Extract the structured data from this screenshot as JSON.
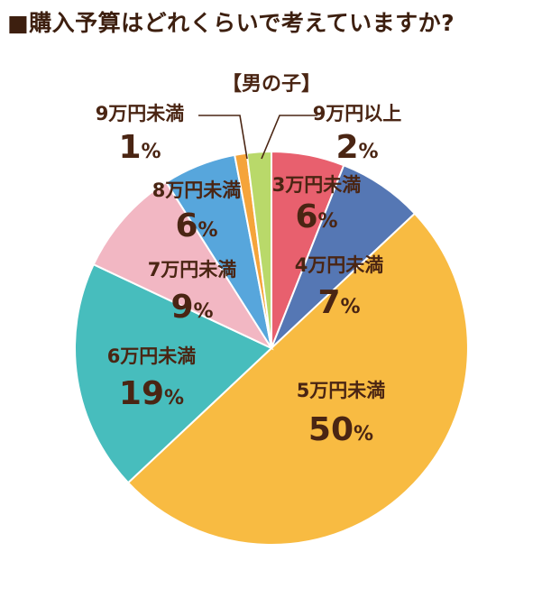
{
  "page": {
    "title": "■購入予算はどれくらいで考えていますか?"
  },
  "chart_data": {
    "type": "pie",
    "title": "■購入予算はどれくらいで考えていますか?",
    "subtitle": "【男の子】",
    "unit": "%",
    "slices": [
      {
        "label": "3万円未満",
        "value": 6,
        "color": "#e8606e"
      },
      {
        "label": "4万円未満",
        "value": 7,
        "color": "#5577b4"
      },
      {
        "label": "5万円未満",
        "value": 50,
        "color": "#f8bb42"
      },
      {
        "label": "6万円未満",
        "value": 19,
        "color": "#47bdbd"
      },
      {
        "label": "7万円未満",
        "value": 9,
        "color": "#f2b7c3"
      },
      {
        "label": "8万円未満",
        "value": 6,
        "color": "#57a6dc"
      },
      {
        "label": "9万円未満",
        "value": 1,
        "color": "#f5a43a"
      },
      {
        "label": "9万円以上",
        "value": 2,
        "color": "#b9d96a"
      }
    ],
    "legend": "none",
    "direction": "clockwise from top"
  }
}
